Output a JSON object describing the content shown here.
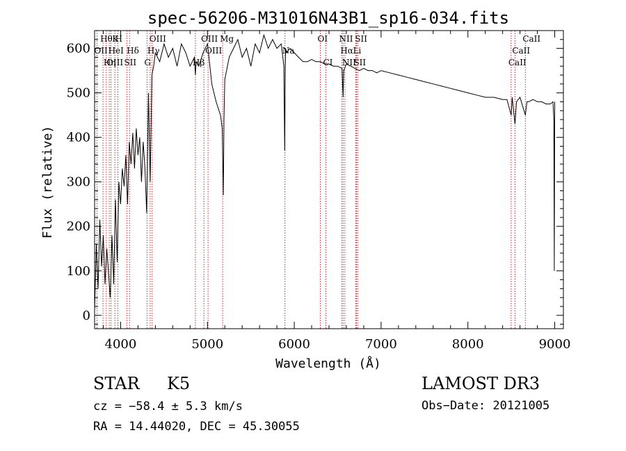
{
  "chart_data": {
    "type": "line",
    "title": "spec-56206-M31016N43B1_sp16-034.fits",
    "xlabel": "Wavelength (Å)",
    "ylabel": "Flux (relative)",
    "xlim": [
      3700,
      9100
    ],
    "ylim": [
      -30,
      640
    ],
    "x_ticks": [
      4000,
      5000,
      6000,
      7000,
      8000,
      9000
    ],
    "x_tick_labels": [
      "4000",
      "5000",
      "6000",
      "7000",
      "8000",
      "9000"
    ],
    "y_ticks": [
      0,
      100,
      200,
      300,
      400,
      500,
      600
    ],
    "y_tick_labels": [
      "0",
      "100",
      "200",
      "300",
      "400",
      "500",
      "600"
    ],
    "grid": false,
    "series": [
      {
        "name": "flux",
        "color": "#000000",
        "x": [
          3700,
          3720,
          3740,
          3760,
          3780,
          3800,
          3820,
          3840,
          3860,
          3880,
          3900,
          3920,
          3940,
          3960,
          3980,
          4000,
          4020,
          4040,
          4060,
          4080,
          4100,
          4120,
          4140,
          4160,
          4180,
          4200,
          4220,
          4240,
          4260,
          4280,
          4300,
          4320,
          4340,
          4360,
          4380,
          4400,
          4450,
          4500,
          4550,
          4600,
          4650,
          4700,
          4750,
          4800,
          4850,
          4861,
          4870,
          4900,
          4950,
          5000,
          5050,
          5100,
          5150,
          5170,
          5183,
          5190,
          5200,
          5250,
          5300,
          5350,
          5400,
          5450,
          5500,
          5550,
          5600,
          5650,
          5700,
          5750,
          5800,
          5850,
          5880,
          5890,
          5896,
          5900,
          5910,
          5950,
          6000,
          6050,
          6100,
          6150,
          6200,
          6250,
          6300,
          6350,
          6400,
          6450,
          6500,
          6550,
          6563,
          6570,
          6600,
          6650,
          6700,
          6750,
          6800,
          6850,
          6900,
          6950,
          7000,
          7100,
          7200,
          7300,
          7400,
          7500,
          7600,
          7700,
          7800,
          7900,
          8000,
          8100,
          8200,
          8300,
          8400,
          8450,
          8498,
          8510,
          8542,
          8560,
          8600,
          8662,
          8680,
          8700,
          8750,
          8800,
          8850,
          8900,
          8950,
          8980,
          8990,
          8995,
          9000
        ],
        "y": [
          10,
          160,
          60,
          215,
          110,
          180,
          70,
          150,
          95,
          40,
          180,
          70,
          260,
          120,
          300,
          250,
          330,
          290,
          360,
          250,
          390,
          340,
          410,
          330,
          420,
          360,
          400,
          300,
          390,
          330,
          230,
          500,
          300,
          540,
          560,
          590,
          570,
          610,
          580,
          600,
          560,
          610,
          590,
          560,
          580,
          540,
          570,
          560,
          590,
          610,
          520,
          480,
          450,
          420,
          270,
          440,
          530,
          580,
          600,
          620,
          580,
          600,
          560,
          610,
          590,
          630,
          600,
          620,
          600,
          610,
          560,
          370,
          560,
          600,
          590,
          600,
          590,
          580,
          570,
          570,
          575,
          570,
          570,
          565,
          565,
          560,
          560,
          555,
          490,
          550,
          565,
          560,
          555,
          550,
          555,
          550,
          550,
          545,
          550,
          545,
          540,
          535,
          530,
          525,
          520,
          515,
          510,
          505,
          500,
          495,
          490,
          490,
          485,
          485,
          450,
          490,
          430,
          480,
          490,
          450,
          480,
          480,
          485,
          480,
          480,
          475,
          475,
          480,
          440,
          100,
          480
        ],
        "label": ""
      }
    ],
    "line_markers": [
      {
        "label": "Hθ",
        "x": 3797
      },
      {
        "label": "OII",
        "x": 3727
      },
      {
        "label": "OIII",
        "x": 3869
      },
      {
        "label": "K",
        "x": 3934
      },
      {
        "label": "HeI",
        "x": 3889
      },
      {
        "label": "Hη",
        "x": 3835
      },
      {
        "label": "H",
        "x": 3968
      },
      {
        "label": "Hδ",
        "x": 4102
      },
      {
        "label": "SII",
        "x": 4072
      },
      {
        "label": "OIII",
        "x": 4363
      },
      {
        "label": "Hγ",
        "x": 4340
      },
      {
        "label": "G",
        "x": 4304
      },
      {
        "label": "OIII",
        "x": 4959
      },
      {
        "label": "OIII",
        "x": 5007
      },
      {
        "label": "Hβ",
        "x": 4861
      },
      {
        "label": "Mg",
        "x": 5175
      },
      {
        "label": "Na",
        "x": 5893
      },
      {
        "label": "CI",
        "x": 6364
      },
      {
        "label": "OI",
        "x": 6300
      },
      {
        "label": "Hα",
        "x": 6563
      },
      {
        "label": "SII",
        "x": 6716
      },
      {
        "label": "NII",
        "x": 6548
      },
      {
        "label": "Li",
        "x": 6708
      },
      {
        "label": "NII",
        "x": 6583
      },
      {
        "label": "SII",
        "x": 6731
      },
      {
        "label": "CaII",
        "x": 8542
      },
      {
        "label": "CaII",
        "x": 8498
      },
      {
        "label": "CaII",
        "x": 8662
      }
    ]
  },
  "info": {
    "class_label": "STAR",
    "subclass": "K5",
    "redshift": "cz = −58.4 ± 5.3 km/s",
    "coords": "RA =  14.44020, DEC =  45.30055",
    "survey": "LAMOST DR3",
    "obs_date": "Obs−Date: 20121005"
  }
}
